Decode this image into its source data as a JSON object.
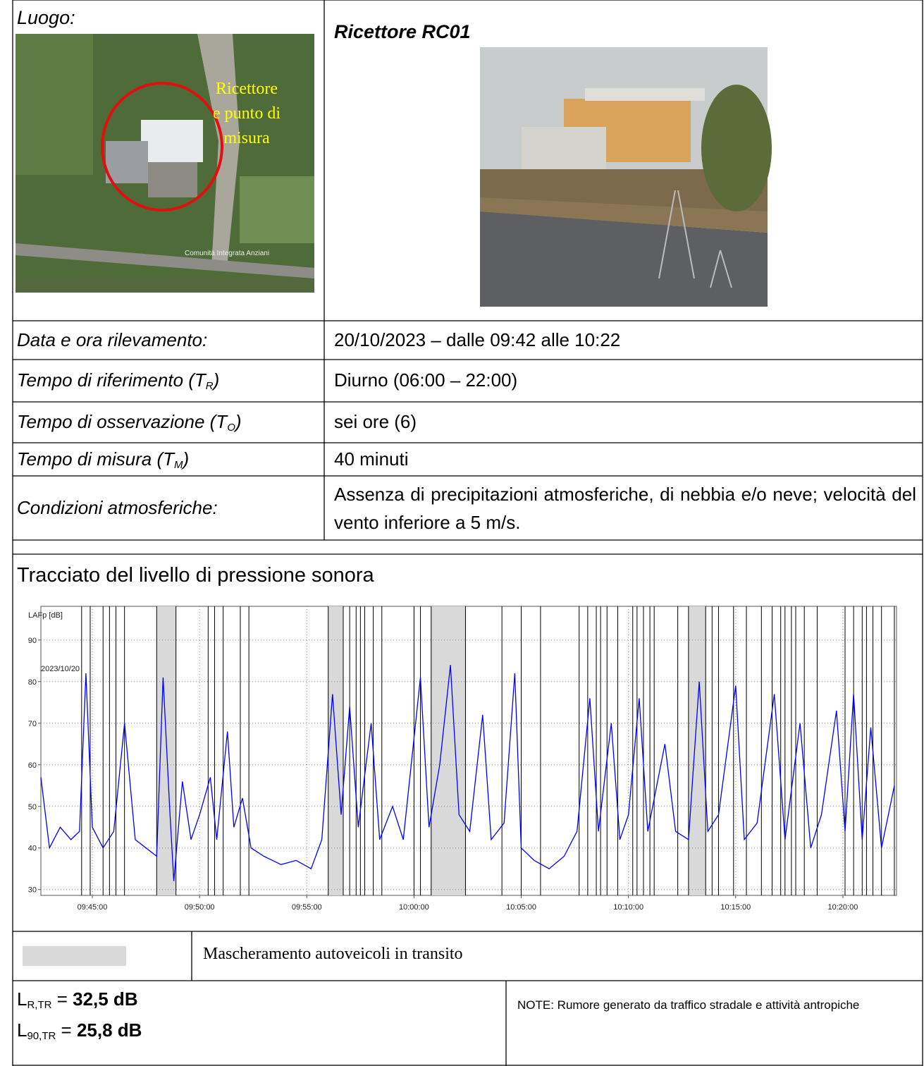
{
  "location": {
    "label": "Luogo:",
    "map_labels": [
      "Ricettore",
      "e punto di",
      "misura"
    ],
    "map_place": "Comunità Integrata Anziani"
  },
  "receptor": {
    "title": "Ricettore RC01"
  },
  "rows": [
    {
      "label": {
        "text": "Data e ora rilevamento:"
      },
      "value": "20/10/2023 – dalle 09:42 alle 10:22"
    },
    {
      "label": {
        "text": "Tempo di riferimento (T",
        "sub": "R",
        "tail": ")"
      },
      "value": "Diurno (06:00 – 22:00)"
    },
    {
      "label": {
        "text": "Tempo di osservazione (T",
        "sub": "O",
        "tail": ")"
      },
      "value": "sei ore (6)"
    },
    {
      "label": {
        "text": "Tempo di misura (T",
        "sub": "M",
        "tail": ")"
      },
      "value": "40 minuti"
    },
    {
      "label": {
        "text": "Condizioni atmosferiche:"
      },
      "value": "Assenza di precipitazioni atmosferiche, di nebbia e/o neve; velocità del vento inferiore a 5 m/s."
    }
  ],
  "chart": {
    "type": "line",
    "title": "Tracciato del livello di pressione sonora",
    "y_label": "LAFp [dB]",
    "annotation": "2023/10/20",
    "xlim": [
      582.6,
      622.5
    ],
    "ylim": [
      28.6,
      98.1
    ],
    "xticks": [
      {
        "value": 585,
        "label": "09:45:00"
      },
      {
        "value": 590,
        "label": "09:50:00"
      },
      {
        "value": 595,
        "label": "09:55:00"
      },
      {
        "value": 600,
        "label": "10:00:00"
      },
      {
        "value": 605,
        "label": "10:05:00"
      },
      {
        "value": 610,
        "label": "10:10:00"
      },
      {
        "value": 615,
        "label": "10:15:00"
      },
      {
        "value": 620,
        "label": "10:20:00"
      }
    ],
    "yticks": [
      30,
      40,
      50,
      60,
      70,
      80,
      90
    ],
    "grid": true,
    "mask_color": "#d9d9d9",
    "x": [
      582.6,
      583.0,
      583.5,
      584.0,
      584.4,
      584.7,
      585.0,
      585.5,
      586.0,
      586.5,
      587.0,
      587.5,
      588.0,
      588.3,
      588.6,
      588.8,
      589.2,
      589.6,
      590.0,
      590.5,
      590.8,
      591.3,
      591.6,
      592.0,
      592.4,
      593.0,
      593.8,
      594.5,
      595.2,
      595.7,
      596.2,
      596.6,
      597.0,
      597.4,
      598.0,
      598.4,
      599.0,
      599.5,
      600.3,
      600.7,
      601.2,
      601.7,
      602.1,
      602.6,
      603.2,
      603.6,
      604.2,
      604.7,
      605.0,
      605.6,
      606.3,
      607.0,
      607.6,
      608.2,
      608.6,
      609.2,
      609.6,
      610.0,
      610.5,
      610.9,
      611.7,
      612.2,
      612.8,
      613.3,
      613.7,
      614.2,
      615.0,
      615.4,
      616.0,
      616.8,
      617.3,
      618.0,
      618.5,
      619.0,
      619.7,
      620.1,
      620.5,
      620.9,
      621.3,
      621.8,
      622.4
    ],
    "series": [
      {
        "color": "#0000ff",
        "values": [
          57,
          40,
          45,
          42,
          44,
          82,
          45,
          40,
          44,
          70,
          42,
          40,
          38,
          81,
          50,
          32,
          56,
          42,
          48,
          57,
          42,
          68,
          45,
          52,
          40,
          38,
          36,
          37,
          35,
          42,
          77,
          48,
          74,
          45,
          70,
          42,
          50,
          42,
          81,
          45,
          60,
          84,
          48,
          44,
          72,
          42,
          46,
          82,
          40,
          37,
          35,
          38,
          44,
          76,
          44,
          70,
          42,
          48,
          76,
          44,
          65,
          44,
          42,
          80,
          44,
          48,
          79,
          42,
          46,
          77,
          42,
          70,
          40,
          48,
          73,
          44,
          77,
          42,
          69,
          40,
          55
        ]
      }
    ],
    "masked": [
      [
        588.0,
        588.9
      ],
      [
        596.0,
        596.7
      ],
      [
        600.8,
        602.4
      ],
      [
        612.8,
        613.6
      ]
    ],
    "markers": [
      584.5,
      584.9,
      585.5,
      585.8,
      586.1,
      586.5,
      588.0,
      588.9,
      590.4,
      590.7,
      591.1,
      591.9,
      592.3,
      596.0,
      596.7,
      597.0,
      597.3,
      597.5,
      597.7,
      598.1,
      598.5,
      600.0,
      600.3,
      600.8,
      602.4,
      604.1,
      605.0,
      605.9,
      607.7,
      608.1,
      608.5,
      608.7,
      609.0,
      609.5,
      610.2,
      610.4,
      610.7,
      611.0,
      611.2,
      612.3,
      612.8,
      613.6,
      613.9,
      614.2,
      614.9,
      615.5,
      616.2,
      616.7,
      617.1,
      617.3,
      617.6,
      617.8,
      618.2,
      618.8,
      620.1,
      620.5,
      620.9,
      621.1,
      621.4,
      621.8,
      622.4
    ]
  },
  "legend": {
    "text": "Mascheramento autoveicoli in transito"
  },
  "results": [
    {
      "symbol": "L",
      "sub": "R,TR",
      "eq": " = ",
      "value": "32,5 dB"
    },
    {
      "symbol": "L",
      "sub": "90,TR",
      "eq": " = ",
      "value": "25,8 dB"
    }
  ],
  "note": "NOTE: Rumore generato da traffico stradale e attività antropiche"
}
